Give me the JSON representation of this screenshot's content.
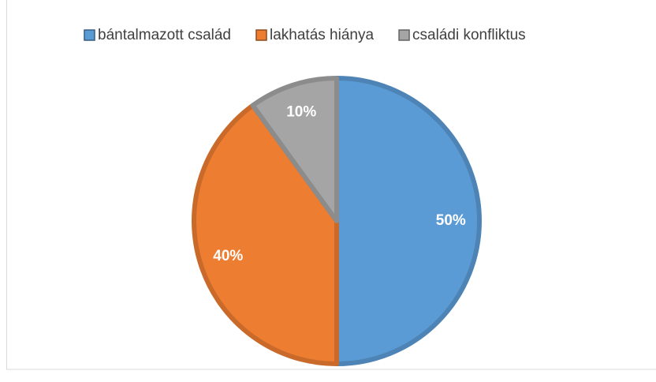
{
  "chart_data": {
    "type": "pie",
    "categories": [
      "bántalmazott család",
      "lakhatás hiánya",
      "családi konfliktus"
    ],
    "values": [
      50,
      40,
      10
    ],
    "value_labels": [
      "50%",
      "40%",
      "10%"
    ],
    "colors": [
      "#5b9bd5",
      "#ed7d31",
      "#a5a5a5"
    ],
    "legend": "top"
  }
}
